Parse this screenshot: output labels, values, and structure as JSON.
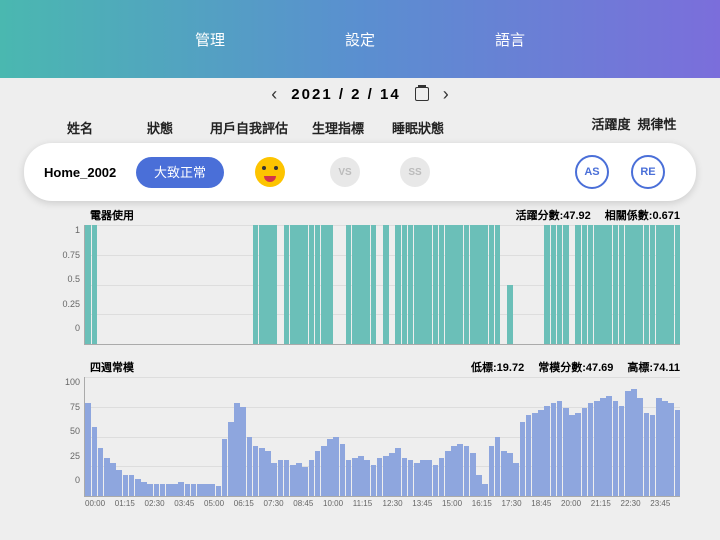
{
  "header": {
    "tabs": [
      "管理",
      "設定",
      "語言"
    ]
  },
  "date": {
    "text": "2021 / 2 / 14"
  },
  "columns": {
    "name": "姓名",
    "status": "狀態",
    "self": "用戶自我評估",
    "vital": "生理指標",
    "sleep": "睡眠狀態",
    "active": "活躍度",
    "regular": "規律性"
  },
  "card": {
    "name": "Home_2002",
    "status": "大致正常",
    "vs": "VS",
    "ss": "SS",
    "as": "AS",
    "re": "RE"
  },
  "chart1": {
    "title": "電器使用",
    "stat1_label": "活躍分數:",
    "stat1_val": "47.92",
    "stat2_label": "相關係數:",
    "stat2_val": "0.671",
    "yticks": [
      "1",
      "0.75",
      "0.5",
      "0.25",
      "0"
    ],
    "color": "#6bbfb8",
    "values": [
      1,
      1,
      0,
      0,
      0,
      0,
      0,
      0,
      0,
      0,
      0,
      0,
      0,
      0,
      0,
      0,
      0,
      0,
      0,
      0,
      0,
      0,
      0,
      0,
      0,
      0,
      0,
      1,
      1,
      1,
      1,
      0,
      1,
      1,
      1,
      1,
      1,
      1,
      1,
      1,
      0,
      0,
      1,
      1,
      1,
      1,
      1,
      0,
      1,
      0,
      1,
      1,
      1,
      1,
      1,
      1,
      1,
      1,
      1,
      1,
      1,
      1,
      1,
      1,
      1,
      1,
      1,
      0,
      0.5,
      0,
      0,
      0,
      0,
      0,
      1,
      1,
      1,
      1,
      0,
      1,
      1,
      1,
      1,
      1,
      1,
      1,
      1,
      1,
      1,
      1,
      1,
      1,
      1,
      1,
      1,
      1
    ]
  },
  "chart2": {
    "title": "四週常模",
    "stat1_label": "低標:",
    "stat1_val": "19.72",
    "stat2_label": "常模分數:",
    "stat2_val": "47.69",
    "stat3_label": "高標:",
    "stat3_val": "74.11",
    "yticks": [
      "100",
      "75",
      "50",
      "25",
      "0"
    ],
    "color": "#8ea6de",
    "values": [
      78,
      58,
      40,
      32,
      28,
      22,
      18,
      18,
      14,
      12,
      10,
      10,
      10,
      10,
      10,
      12,
      10,
      10,
      10,
      10,
      10,
      8,
      48,
      62,
      78,
      75,
      50,
      42,
      40,
      38,
      28,
      30,
      30,
      26,
      28,
      24,
      30,
      38,
      42,
      48,
      50,
      44,
      30,
      32,
      34,
      30,
      26,
      32,
      34,
      36,
      40,
      32,
      30,
      28,
      30,
      30,
      26,
      32,
      38,
      42,
      44,
      42,
      36,
      18,
      10,
      42,
      50,
      38,
      36,
      28,
      62,
      68,
      70,
      72,
      76,
      78,
      80,
      74,
      68,
      70,
      74,
      78,
      80,
      82,
      84,
      80,
      76,
      88,
      90,
      82,
      70,
      68,
      82,
      80,
      78,
      72
    ]
  },
  "xlabels": [
    "00:00",
    "01:15",
    "02:30",
    "03:45",
    "05:00",
    "06:15",
    "07:30",
    "08:45",
    "10:00",
    "11:15",
    "12:30",
    "13:45",
    "15:00",
    "16:15",
    "17:30",
    "18:45",
    "20:00",
    "21:15",
    "22:30",
    "23:45"
  ]
}
